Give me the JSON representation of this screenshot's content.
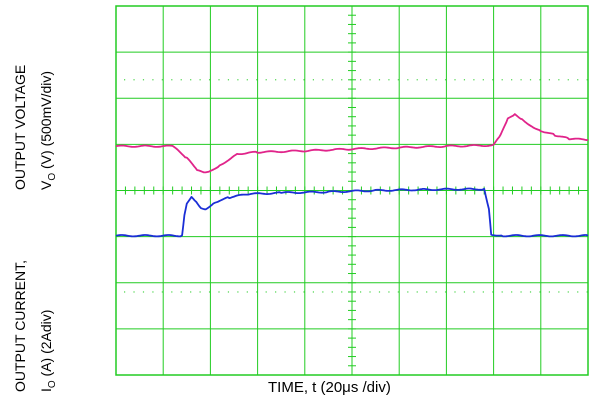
{
  "chart_data": {
    "type": "line",
    "xlabel": "TIME, t (20μs /div)",
    "ylabel_top_line1": "OUTPUT VOLTAGE",
    "ylabel_top_line2_prefix": "V",
    "ylabel_top_line2_sub": "O",
    "ylabel_top_line2_rest": " (V) (500mV/div)",
    "ylabel_bottom_line1": "OUTPUT CURRENT,",
    "ylabel_bottom_line2_prefix": "I",
    "ylabel_bottom_line2_sub": "O",
    "ylabel_bottom_line2_rest": " (A)  (2Adiv)",
    "grid": true,
    "grid_color": "#22cc22",
    "x_divisions": 10,
    "y_divisions": 8,
    "series": [
      {
        "color": "#e0248a",
        "channel_label_div": 3,
        "x_div": [
          0,
          1.2,
          1.5,
          1.75,
          1.9,
          2.0,
          2.2,
          2.6,
          3.0,
          4.0,
          5.0,
          6.0,
          7.0,
          8.0,
          8.15,
          8.3,
          8.45,
          8.6,
          8.8,
          9.0,
          9.3,
          9.6,
          10
        ],
        "y_div": [
          -0.04,
          -0.04,
          -0.3,
          -0.58,
          -0.62,
          -0.58,
          -0.45,
          -0.2,
          -0.17,
          -0.14,
          -0.1,
          -0.07,
          -0.04,
          -0.02,
          0.2,
          0.55,
          0.65,
          0.55,
          0.4,
          0.3,
          0.2,
          0.12,
          0.1
        ]
      },
      {
        "color": "#1a2ed6",
        "channel_label_div": 5,
        "x_div": [
          0,
          1.4,
          1.45,
          1.5,
          1.6,
          1.7,
          1.8,
          1.9,
          2.1,
          2.4,
          2.8,
          3.5,
          4.5,
          5.5,
          6.5,
          7.5,
          7.8,
          7.9,
          7.95,
          8.2,
          10
        ],
        "y_div": [
          0.02,
          0.02,
          0.45,
          0.7,
          0.85,
          0.75,
          0.62,
          0.6,
          0.75,
          0.85,
          0.92,
          0.95,
          0.97,
          1.0,
          1.02,
          1.03,
          1.03,
          0.6,
          0.05,
          0.02,
          0.02
        ]
      }
    ]
  }
}
